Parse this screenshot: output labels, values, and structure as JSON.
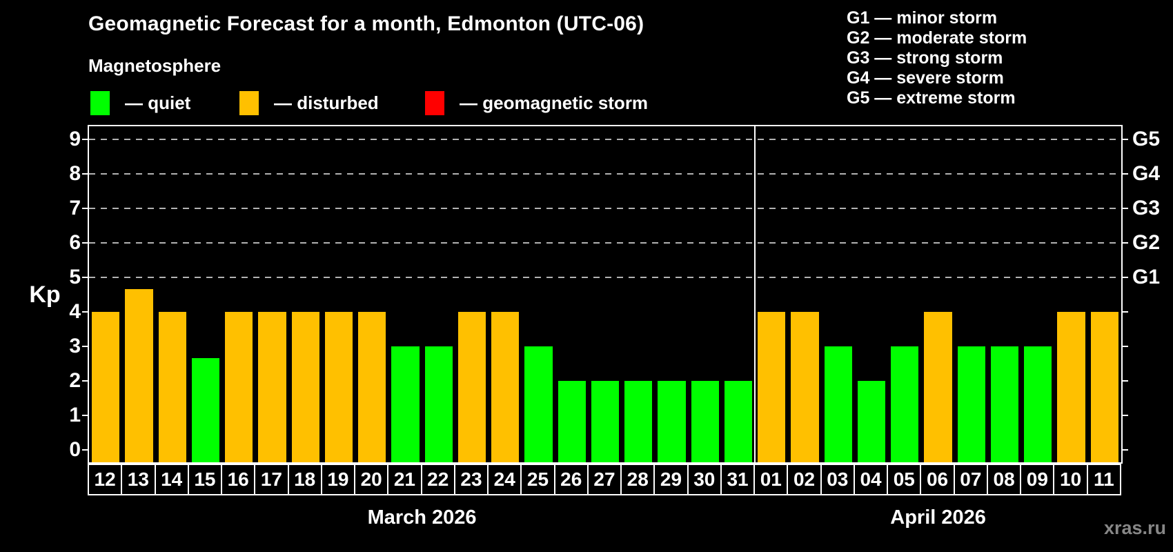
{
  "header": {
    "title": "Geomagnetic Forecast for a month, Edmonton (UTC-06)",
    "subtitle": "Magnetosphere"
  },
  "status_legend": [
    {
      "id": "quiet",
      "swatch_color": "#00ff00",
      "label": "— quiet"
    },
    {
      "id": "disturbed",
      "swatch_color": "#ffc000",
      "label": "— disturbed"
    },
    {
      "id": "storm",
      "swatch_color": "#ff0000",
      "label": "— geomagnetic storm"
    }
  ],
  "g_scale_legend": [
    "G1 — minor storm",
    "G2 — moderate storm",
    "G3 — strong storm",
    "G4 — severe storm",
    "G5 — extreme storm"
  ],
  "watermark": "xras.ru",
  "chart_data": {
    "type": "bar",
    "title": "Geomagnetic Forecast for a month, Edmonton (UTC-06)",
    "ylabel": "Kp",
    "ylim": [
      0,
      9
    ],
    "yticks": [
      0,
      1,
      2,
      3,
      4,
      5,
      6,
      7,
      8,
      9
    ],
    "gridlines_at_kp": [
      5,
      6,
      7,
      8,
      9
    ],
    "grid": "dashed horizontal lines at storm levels G1–G5",
    "right_axis": [
      {
        "kp": 5,
        "label": "G1"
      },
      {
        "kp": 6,
        "label": "G2"
      },
      {
        "kp": 7,
        "label": "G3"
      },
      {
        "kp": 8,
        "label": "G4"
      },
      {
        "kp": 9,
        "label": "G5"
      }
    ],
    "status_colors": {
      "quiet": "#00ff00",
      "disturbed": "#ffc000",
      "storm": "#ff0000"
    },
    "months": [
      {
        "label": "March 2026",
        "days": [
          {
            "day": "12",
            "kp": 4,
            "status": "disturbed"
          },
          {
            "day": "13",
            "kp": 4.67,
            "status": "disturbed"
          },
          {
            "day": "14",
            "kp": 4,
            "status": "disturbed"
          },
          {
            "day": "15",
            "kp": 2.67,
            "status": "quiet"
          },
          {
            "day": "16",
            "kp": 4,
            "status": "disturbed"
          },
          {
            "day": "17",
            "kp": 4,
            "status": "disturbed"
          },
          {
            "day": "18",
            "kp": 4,
            "status": "disturbed"
          },
          {
            "day": "19",
            "kp": 4,
            "status": "disturbed"
          },
          {
            "day": "20",
            "kp": 4,
            "status": "disturbed"
          },
          {
            "day": "21",
            "kp": 3,
            "status": "quiet"
          },
          {
            "day": "22",
            "kp": 3,
            "status": "quiet"
          },
          {
            "day": "23",
            "kp": 4,
            "status": "disturbed"
          },
          {
            "day": "24",
            "kp": 4,
            "status": "disturbed"
          },
          {
            "day": "25",
            "kp": 3,
            "status": "quiet"
          },
          {
            "day": "26",
            "kp": 2,
            "status": "quiet"
          },
          {
            "day": "27",
            "kp": 2,
            "status": "quiet"
          },
          {
            "day": "28",
            "kp": 2,
            "status": "quiet"
          },
          {
            "day": "29",
            "kp": 2,
            "status": "quiet"
          },
          {
            "day": "30",
            "kp": 2,
            "status": "quiet"
          },
          {
            "day": "31",
            "kp": 2,
            "status": "quiet"
          }
        ]
      },
      {
        "label": "April 2026",
        "days": [
          {
            "day": "01",
            "kp": 4,
            "status": "disturbed"
          },
          {
            "day": "02",
            "kp": 4,
            "status": "disturbed"
          },
          {
            "day": "03",
            "kp": 3,
            "status": "quiet"
          },
          {
            "day": "04",
            "kp": 2,
            "status": "quiet"
          },
          {
            "day": "05",
            "kp": 3,
            "status": "quiet"
          },
          {
            "day": "06",
            "kp": 4,
            "status": "disturbed"
          },
          {
            "day": "07",
            "kp": 3,
            "status": "quiet"
          },
          {
            "day": "08",
            "kp": 3,
            "status": "quiet"
          },
          {
            "day": "09",
            "kp": 3,
            "status": "quiet"
          },
          {
            "day": "10",
            "kp": 4,
            "status": "disturbed"
          },
          {
            "day": "11",
            "kp": 4,
            "status": "disturbed"
          }
        ]
      }
    ]
  }
}
